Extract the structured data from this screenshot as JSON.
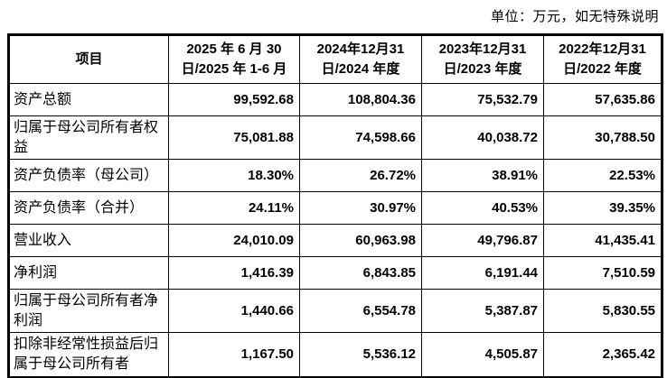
{
  "unit_note": "单位：万元，如无特殊说明",
  "table": {
    "header": [
      "项目",
      "2025 年 6 月 30 日/2025 年 1-6 月",
      "2024年12月31日/2024 年度",
      "2023年12月31日/2023 年度",
      "2022年12月31日/2022 年度"
    ],
    "rows": [
      {
        "label": "资产总额",
        "values": [
          "99,592.68",
          "108,804.36",
          "75,532.79",
          "57,635.86"
        ]
      },
      {
        "label": "归属于母公司所有者权益",
        "values": [
          "75,081.88",
          "74,598.66",
          "40,038.72",
          "30,788.50"
        ]
      },
      {
        "label": "资产负债率（母公司）",
        "values": [
          "18.30%",
          "26.72%",
          "38.91%",
          "22.53%"
        ]
      },
      {
        "label": "资产负债率（合并）",
        "values": [
          "24.11%",
          "30.97%",
          "40.53%",
          "39.35%"
        ]
      },
      {
        "label": "营业收入",
        "values": [
          "24,010.09",
          "60,963.98",
          "49,796.87",
          "41,435.41"
        ]
      },
      {
        "label": "净利润",
        "values": [
          "1,416.39",
          "6,843.85",
          "6,191.44",
          "7,510.59"
        ]
      },
      {
        "label": "归属于母公司所有者净利润",
        "values": [
          "1,440.66",
          "6,554.78",
          "5,387.87",
          "5,830.55"
        ]
      },
      {
        "label": "扣除非经常性损益后归属于母公司所有者",
        "values": [
          "1,167.50",
          "5,536.12",
          "4,505.87",
          "2,365.42"
        ]
      }
    ]
  }
}
